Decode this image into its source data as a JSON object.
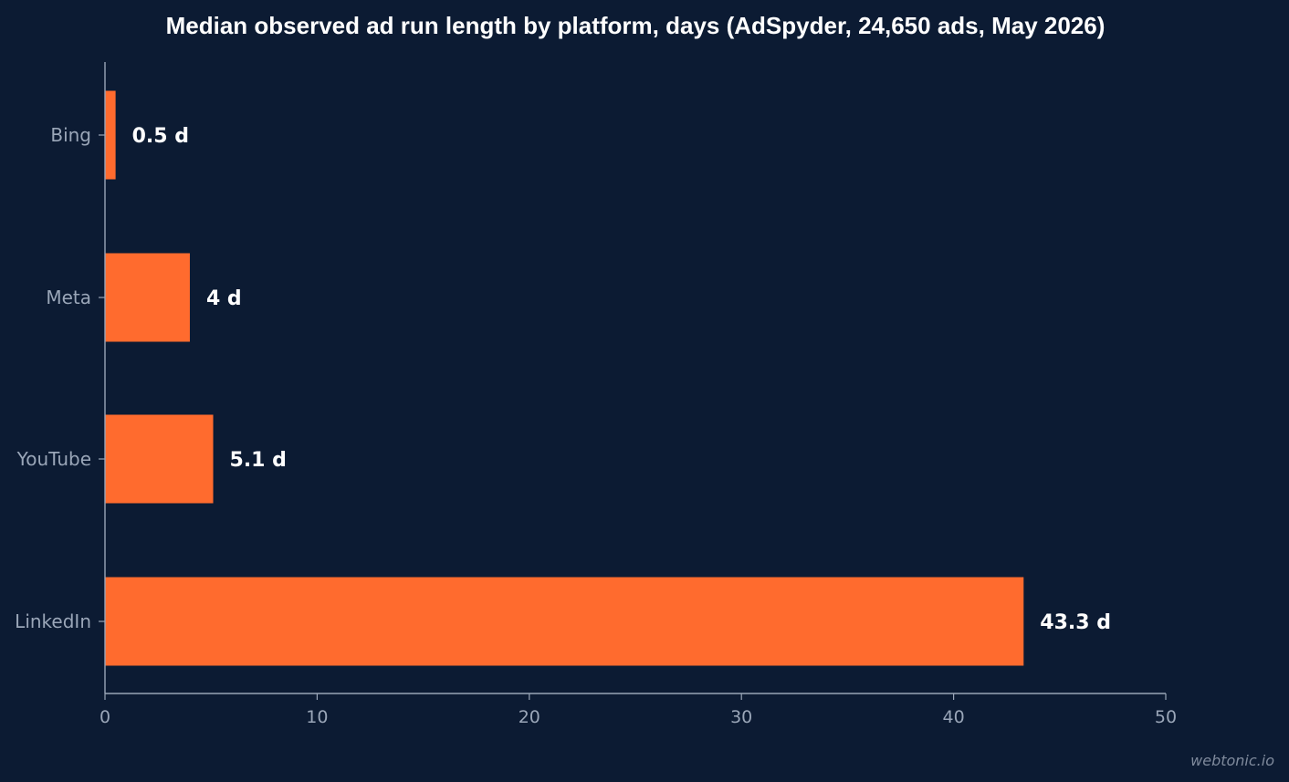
{
  "chart_data": {
    "type": "bar",
    "orientation": "horizontal",
    "title": "Median observed ad run length by platform, days (AdSpyder, 24,650 ads, May 2026)",
    "categories": [
      "Bing",
      "Meta",
      "YouTube",
      "LinkedIn"
    ],
    "values": [
      0.5,
      4,
      5.1,
      43.3
    ],
    "data_labels": [
      "0.5 d",
      "4 d",
      "5.1 d",
      "43.3 d"
    ],
    "xlim": [
      0,
      50
    ],
    "xticks": [
      0,
      10,
      20,
      30,
      40,
      50
    ],
    "xtick_labels": [
      "0",
      "10",
      "20",
      "30",
      "40",
      "50"
    ],
    "xlabel": "",
    "ylabel": "",
    "grid": false,
    "colors": {
      "background": "#0c1b33",
      "bar": "#ff6b2e",
      "axis": "#9aa6b8",
      "text": "#ffffff"
    }
  },
  "watermark": "webtonic.io"
}
